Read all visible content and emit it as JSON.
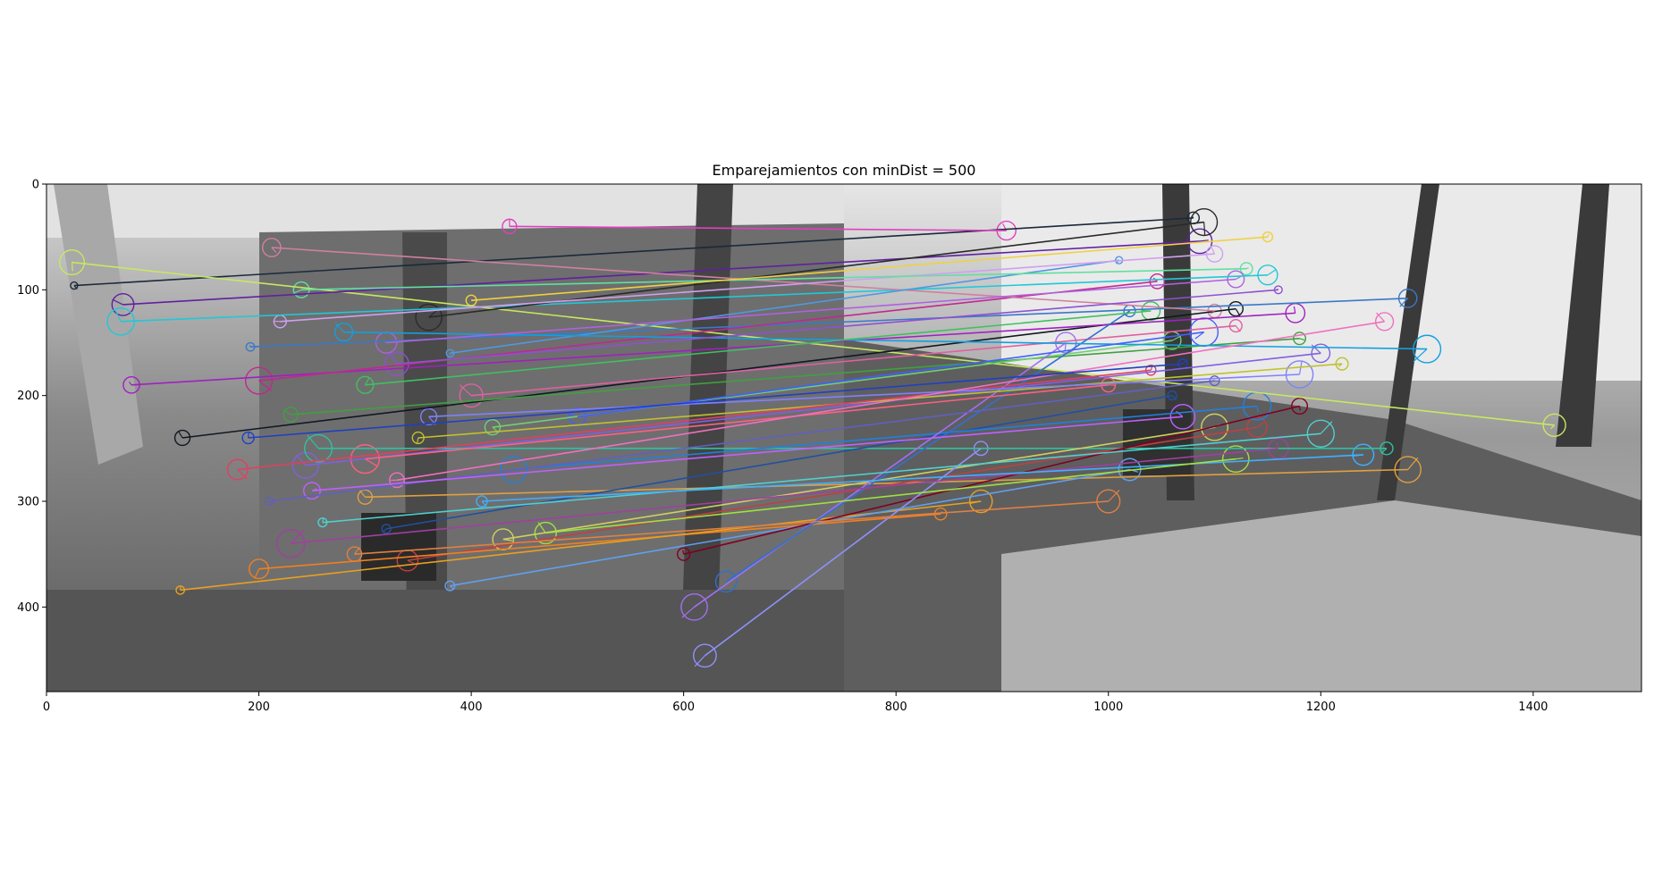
{
  "chart_data": {
    "type": "scatter",
    "title": "Emparejamientos con minDist = 500",
    "xlabel": "",
    "ylabel": "",
    "xlim": [
      0,
      1502
    ],
    "ylim": [
      480,
      0
    ],
    "x_ticks": [
      0,
      200,
      400,
      600,
      800,
      1000,
      1200,
      1400
    ],
    "y_ticks": [
      0,
      100,
      200,
      300,
      400
    ],
    "grid": false,
    "legend": "none",
    "image_split_x": 751,
    "colors": {
      "frame": "#000000",
      "tick_text": "#000000",
      "background": "#ffffff"
    },
    "matches": [
      {
        "x1": 26,
        "y1": 96,
        "x2": 1080,
        "y2": 32,
        "color": "#1a2a3a"
      },
      {
        "x1": 436,
        "y1": 40,
        "x2": 904,
        "y2": 44,
        "color": "#e040c0"
      },
      {
        "x1": 24,
        "y1": 74,
        "x2": 1420,
        "y2": 228,
        "color": "#c8e860"
      },
      {
        "x1": 72,
        "y1": 114,
        "x2": 1086,
        "y2": 54,
        "color": "#6020a0"
      },
      {
        "x1": 70,
        "y1": 130,
        "x2": 1150,
        "y2": 86,
        "color": "#20c8d8"
      },
      {
        "x1": 128,
        "y1": 240,
        "x2": 1120,
        "y2": 118,
        "color": "#101820"
      },
      {
        "x1": 80,
        "y1": 190,
        "x2": 1176,
        "y2": 122,
        "color": "#a020c0"
      },
      {
        "x1": 192,
        "y1": 154,
        "x2": 1282,
        "y2": 108,
        "color": "#3a78c8"
      },
      {
        "x1": 200,
        "y1": 186,
        "x2": 1046,
        "y2": 92,
        "color": "#c02890"
      },
      {
        "x1": 212,
        "y1": 60,
        "x2": 1100,
        "y2": 120,
        "color": "#d080a0"
      },
      {
        "x1": 230,
        "y1": 218,
        "x2": 1180,
        "y2": 146,
        "color": "#40a040"
      },
      {
        "x1": 244,
        "y1": 266,
        "x2": 1200,
        "y2": 160,
        "color": "#8060e0"
      },
      {
        "x1": 256,
        "y1": 250,
        "x2": 1262,
        "y2": 250,
        "color": "#30c0a0"
      },
      {
        "x1": 300,
        "y1": 296,
        "x2": 1282,
        "y2": 270,
        "color": "#e0a040"
      },
      {
        "x1": 320,
        "y1": 326,
        "x2": 1060,
        "y2": 200,
        "color": "#2050a0"
      },
      {
        "x1": 340,
        "y1": 356,
        "x2": 1140,
        "y2": 230,
        "color": "#c04040"
      },
      {
        "x1": 360,
        "y1": 126,
        "x2": 1090,
        "y2": 36,
        "color": "#2a2a2a"
      },
      {
        "x1": 380,
        "y1": 160,
        "x2": 1010,
        "y2": 72,
        "color": "#5098e0"
      },
      {
        "x1": 400,
        "y1": 200,
        "x2": 1120,
        "y2": 134,
        "color": "#e060a0"
      },
      {
        "x1": 420,
        "y1": 230,
        "x2": 1060,
        "y2": 148,
        "color": "#70d070"
      },
      {
        "x1": 430,
        "y1": 336,
        "x2": 1100,
        "y2": 230,
        "color": "#d0d060"
      },
      {
        "x1": 200,
        "y1": 364,
        "x2": 842,
        "y2": 312,
        "color": "#f08020"
      },
      {
        "x1": 126,
        "y1": 384,
        "x2": 880,
        "y2": 300,
        "color": "#e8a020"
      },
      {
        "x1": 380,
        "y1": 380,
        "x2": 1020,
        "y2": 270,
        "color": "#60a0f0"
      },
      {
        "x1": 440,
        "y1": 270,
        "x2": 1140,
        "y2": 210,
        "color": "#2080e0"
      },
      {
        "x1": 600,
        "y1": 350,
        "x2": 1180,
        "y2": 210,
        "color": "#800020"
      },
      {
        "x1": 610,
        "y1": 400,
        "x2": 960,
        "y2": 150,
        "color": "#a070f0"
      },
      {
        "x1": 620,
        "y1": 446,
        "x2": 880,
        "y2": 250,
        "color": "#9090ff"
      },
      {
        "x1": 640,
        "y1": 376,
        "x2": 1020,
        "y2": 120,
        "color": "#3070d0"
      },
      {
        "x1": 280,
        "y1": 140,
        "x2": 1300,
        "y2": 156,
        "color": "#10a0e0"
      },
      {
        "x1": 300,
        "y1": 190,
        "x2": 1040,
        "y2": 120,
        "color": "#40c060"
      },
      {
        "x1": 330,
        "y1": 170,
        "x2": 1160,
        "y2": 100,
        "color": "#9050d0"
      },
      {
        "x1": 350,
        "y1": 240,
        "x2": 1220,
        "y2": 170,
        "color": "#c0c030"
      },
      {
        "x1": 260,
        "y1": 320,
        "x2": 1200,
        "y2": 236,
        "color": "#50d0d0"
      },
      {
        "x1": 230,
        "y1": 340,
        "x2": 1160,
        "y2": 250,
        "color": "#a040a0"
      },
      {
        "x1": 210,
        "y1": 300,
        "x2": 1100,
        "y2": 186,
        "color": "#6060c0"
      },
      {
        "x1": 180,
        "y1": 270,
        "x2": 1040,
        "y2": 176,
        "color": "#e04060"
      },
      {
        "x1": 220,
        "y1": 130,
        "x2": 1100,
        "y2": 66,
        "color": "#d0a0f0"
      },
      {
        "x1": 240,
        "y1": 100,
        "x2": 1130,
        "y2": 80,
        "color": "#60e0a0"
      },
      {
        "x1": 400,
        "y1": 110,
        "x2": 1150,
        "y2": 50,
        "color": "#f0d040"
      },
      {
        "x1": 410,
        "y1": 300,
        "x2": 1240,
        "y2": 256,
        "color": "#40b0ff"
      },
      {
        "x1": 300,
        "y1": 260,
        "x2": 1000,
        "y2": 190,
        "color": "#ff6080"
      },
      {
        "x1": 360,
        "y1": 220,
        "x2": 1180,
        "y2": 180,
        "color": "#8080ff"
      },
      {
        "x1": 250,
        "y1": 290,
        "x2": 1070,
        "y2": 220,
        "color": "#c060ff"
      },
      {
        "x1": 330,
        "y1": 280,
        "x2": 1260,
        "y2": 130,
        "color": "#f070c0"
      },
      {
        "x1": 470,
        "y1": 330,
        "x2": 1120,
        "y2": 260,
        "color": "#a0e040"
      },
      {
        "x1": 500,
        "y1": 220,
        "x2": 1090,
        "y2": 140,
        "color": "#4060ff"
      },
      {
        "x1": 290,
        "y1": 350,
        "x2": 1000,
        "y2": 300,
        "color": "#e08040"
      },
      {
        "x1": 190,
        "y1": 240,
        "x2": 1070,
        "y2": 170,
        "color": "#2040c0"
      },
      {
        "x1": 320,
        "y1": 150,
        "x2": 1120,
        "y2": 90,
        "color": "#b060e0"
      }
    ]
  }
}
